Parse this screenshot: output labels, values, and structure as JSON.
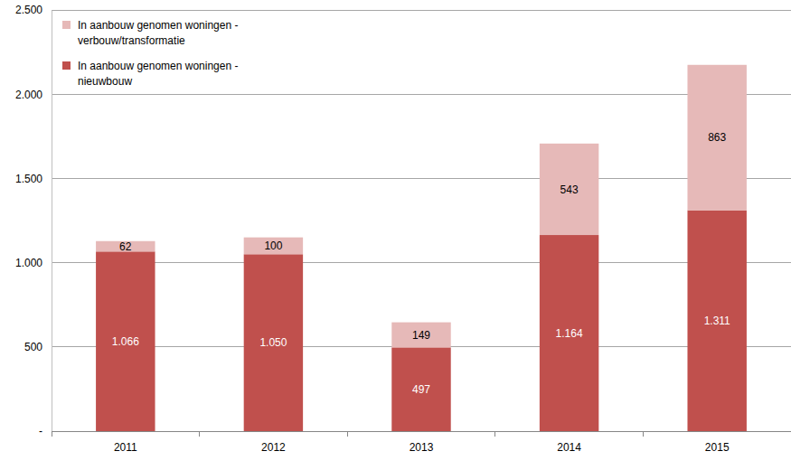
{
  "chart_data": {
    "type": "bar",
    "stacked": true,
    "data_labels": true,
    "grid": true,
    "legend": "upper left",
    "categories": [
      "2011",
      "2012",
      "2013",
      "2014",
      "2015"
    ],
    "series": [
      {
        "name": "In aanbouw genomen woningen - nieuwbouw",
        "color": "#c0504d",
        "values": [
          1066,
          1050,
          497,
          1164,
          1311
        ],
        "value_labels": [
          "1.066",
          "1.050",
          "497",
          "1.164",
          "1.311"
        ]
      },
      {
        "name": "In aanbouw genomen woningen - verbouw/transformatie",
        "color": "#e6b9b8",
        "values": [
          62,
          100,
          149,
          543,
          863
        ]
      }
    ],
    "ylim": [
      0,
      2500
    ],
    "yticks": [
      {
        "value": 0,
        "label": "-"
      },
      500,
      {
        "value": 1000,
        "label": "1.000"
      },
      {
        "value": 1500,
        "label": "1.500"
      },
      {
        "value": 2000,
        "label": "2.000"
      },
      {
        "value": 2500,
        "label": "2.500"
      }
    ]
  }
}
